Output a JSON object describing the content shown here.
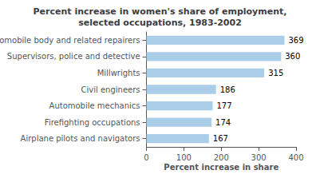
{
  "chart_data": {
    "type": "bar",
    "orientation": "horizontal",
    "title": "Percent increase in women's share of employment,\nselected occupations, 1983-2002",
    "categories": [
      "Airplane pilots and navigators",
      "Firefighting occupations",
      "Automobile mechanics",
      "Civil engineers",
      "Millwrights",
      "Supervisors, police and detective",
      "Automobile body and related repairers"
    ],
    "values": [
      167,
      174,
      177,
      186,
      315,
      360,
      369
    ],
    "color": "#aacde8",
    "xlabel": "Percent increase in share",
    "xlim": [
      0,
      400
    ],
    "xticks": [
      0,
      100,
      200,
      300,
      400
    ],
    "data_labels": true,
    "grid": false
  }
}
